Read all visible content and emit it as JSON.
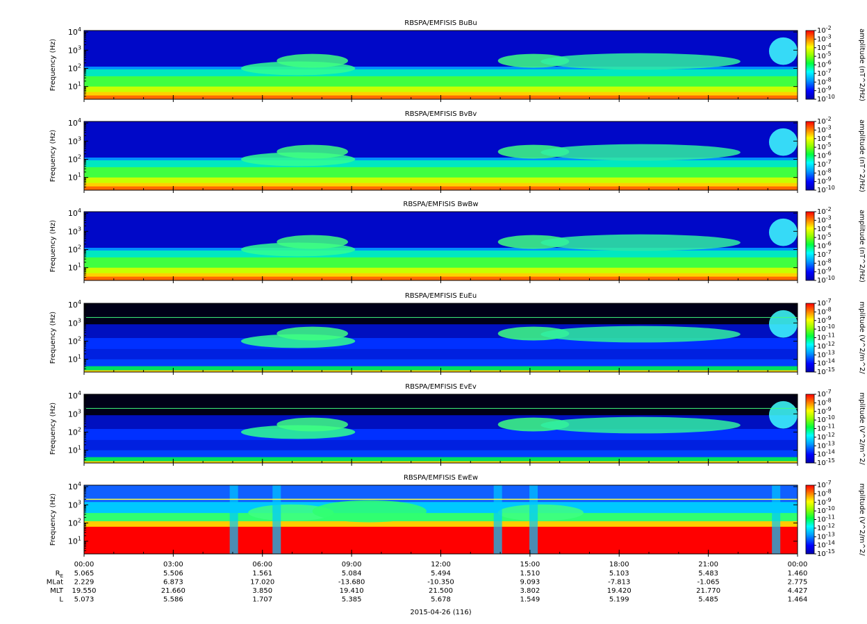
{
  "chart_data": [
    {
      "type": "heatmap",
      "title": "RBSPA/EMFISIS  BuBu",
      "ylabel": "Frequency (Hz)",
      "yscale": "log",
      "ylim": [
        2,
        12000
      ],
      "yticks": [
        {
          "base": "10",
          "exp": "1"
        },
        {
          "base": "10",
          "exp": "2"
        },
        {
          "base": "10",
          "exp": "3"
        },
        {
          "base": "10",
          "exp": "4"
        }
      ],
      "colorbar": {
        "label": "amplitude (nT^2/Hz)",
        "ticks": [
          {
            "base": "10",
            "exp": "-2"
          },
          {
            "base": "10",
            "exp": "-3"
          },
          {
            "base": "10",
            "exp": "-4"
          },
          {
            "base": "10",
            "exp": "-5"
          },
          {
            "base": "10",
            "exp": "-6"
          },
          {
            "base": "10",
            "exp": "-7"
          },
          {
            "base": "10",
            "exp": "-8"
          },
          {
            "base": "10",
            "exp": "-9"
          },
          {
            "base": "10",
            "exp": "-10"
          }
        ]
      },
      "kind": "B"
    },
    {
      "type": "heatmap",
      "title": "RBSPA/EMFISIS  BvBv",
      "ylabel": "Frequency (Hz)",
      "yscale": "log",
      "ylim": [
        2,
        12000
      ],
      "yticks": [
        {
          "base": "10",
          "exp": "1"
        },
        {
          "base": "10",
          "exp": "2"
        },
        {
          "base": "10",
          "exp": "3"
        },
        {
          "base": "10",
          "exp": "4"
        }
      ],
      "colorbar": {
        "label": "amplitude (nT^2/Hz)",
        "ticks": [
          {
            "base": "10",
            "exp": "-2"
          },
          {
            "base": "10",
            "exp": "-3"
          },
          {
            "base": "10",
            "exp": "-4"
          },
          {
            "base": "10",
            "exp": "-5"
          },
          {
            "base": "10",
            "exp": "-6"
          },
          {
            "base": "10",
            "exp": "-7"
          },
          {
            "base": "10",
            "exp": "-8"
          },
          {
            "base": "10",
            "exp": "-9"
          },
          {
            "base": "10",
            "exp": "-10"
          }
        ]
      },
      "kind": "B"
    },
    {
      "type": "heatmap",
      "title": "RBSPA/EMFISIS  BwBw",
      "ylabel": "Frequency (Hz)",
      "yscale": "log",
      "ylim": [
        2,
        12000
      ],
      "yticks": [
        {
          "base": "10",
          "exp": "1"
        },
        {
          "base": "10",
          "exp": "2"
        },
        {
          "base": "10",
          "exp": "3"
        },
        {
          "base": "10",
          "exp": "4"
        }
      ],
      "colorbar": {
        "label": "amplitude (nT^2/Hz)",
        "ticks": [
          {
            "base": "10",
            "exp": "-2"
          },
          {
            "base": "10",
            "exp": "-3"
          },
          {
            "base": "10",
            "exp": "-4"
          },
          {
            "base": "10",
            "exp": "-5"
          },
          {
            "base": "10",
            "exp": "-6"
          },
          {
            "base": "10",
            "exp": "-7"
          },
          {
            "base": "10",
            "exp": "-8"
          },
          {
            "base": "10",
            "exp": "-9"
          },
          {
            "base": "10",
            "exp": "-10"
          }
        ]
      },
      "kind": "B"
    },
    {
      "type": "heatmap",
      "title": "RBSPA/EMFISIS  EuEu",
      "ylabel": "Frequency (Hz)",
      "yscale": "log",
      "ylim": [
        2,
        12000
      ],
      "yticks": [
        {
          "base": "10",
          "exp": "1"
        },
        {
          "base": "10",
          "exp": "2"
        },
        {
          "base": "10",
          "exp": "3"
        },
        {
          "base": "10",
          "exp": "4"
        }
      ],
      "colorbar": {
        "label": "mplitude (V^2/m^2/",
        "ticks": [
          {
            "base": "10",
            "exp": "-7"
          },
          {
            "base": "10",
            "exp": "-8"
          },
          {
            "base": "10",
            "exp": "-9"
          },
          {
            "base": "10",
            "exp": "-10"
          },
          {
            "base": "10",
            "exp": "-11"
          },
          {
            "base": "10",
            "exp": "-12"
          },
          {
            "base": "10",
            "exp": "-13"
          },
          {
            "base": "10",
            "exp": "-14"
          },
          {
            "base": "10",
            "exp": "-15"
          }
        ]
      },
      "kind": "E"
    },
    {
      "type": "heatmap",
      "title": "RBSPA/EMFISIS  EvEv",
      "ylabel": "Frequency (Hz)",
      "yscale": "log",
      "ylim": [
        2,
        12000
      ],
      "yticks": [
        {
          "base": "10",
          "exp": "1"
        },
        {
          "base": "10",
          "exp": "2"
        },
        {
          "base": "10",
          "exp": "3"
        },
        {
          "base": "10",
          "exp": "4"
        }
      ],
      "colorbar": {
        "label": "mplitude (V^2/m^2/",
        "ticks": [
          {
            "base": "10",
            "exp": "-7"
          },
          {
            "base": "10",
            "exp": "-8"
          },
          {
            "base": "10",
            "exp": "-9"
          },
          {
            "base": "10",
            "exp": "-10"
          },
          {
            "base": "10",
            "exp": "-11"
          },
          {
            "base": "10",
            "exp": "-12"
          },
          {
            "base": "10",
            "exp": "-13"
          },
          {
            "base": "10",
            "exp": "-14"
          },
          {
            "base": "10",
            "exp": "-15"
          }
        ]
      },
      "kind": "E"
    },
    {
      "type": "heatmap",
      "title": "RBSPA/EMFISIS  EwEw",
      "ylabel": "Frequency (Hz)",
      "yscale": "log",
      "ylim": [
        2,
        12000
      ],
      "yticks": [
        {
          "base": "10",
          "exp": "1"
        },
        {
          "base": "10",
          "exp": "2"
        },
        {
          "base": "10",
          "exp": "3"
        },
        {
          "base": "10",
          "exp": "4"
        }
      ],
      "colorbar": {
        "label": "mplitude (V^2/m^2/",
        "ticks": [
          {
            "base": "10",
            "exp": "-7"
          },
          {
            "base": "10",
            "exp": "-8"
          },
          {
            "base": "10",
            "exp": "-9"
          },
          {
            "base": "10",
            "exp": "-10"
          },
          {
            "base": "10",
            "exp": "-11"
          },
          {
            "base": "10",
            "exp": "-12"
          },
          {
            "base": "10",
            "exp": "-13"
          },
          {
            "base": "10",
            "exp": "-14"
          },
          {
            "base": "10",
            "exp": "-15"
          }
        ]
      },
      "kind": "Ew"
    }
  ],
  "xaxis": {
    "ticks": [
      "00:00",
      "03:00",
      "06:00",
      "09:00",
      "12:00",
      "15:00",
      "18:00",
      "21:00",
      "00:00"
    ],
    "date_label": "2015-04-26 (116)"
  },
  "ephemeris": {
    "rows": [
      {
        "label": "R",
        "label_sub": "E",
        "values": [
          "5.065",
          "5.506",
          "1.561",
          "5.084",
          "5.494",
          "1.510",
          "5.103",
          "5.483",
          "1.460"
        ]
      },
      {
        "label": "MLat",
        "label_sub": "",
        "values": [
          "2.229",
          "6.873",
          "17.020",
          "-13.680",
          "-10.350",
          "9.093",
          "-7.813",
          "-1.065",
          "2.775"
        ]
      },
      {
        "label": "MLT",
        "label_sub": "",
        "values": [
          "19.550",
          "21.660",
          "3.850",
          "19.410",
          "21.500",
          "3.802",
          "19.420",
          "21.770",
          "4.427"
        ]
      },
      {
        "label": "L",
        "label_sub": "",
        "values": [
          "5.073",
          "5.586",
          "1.707",
          "5.385",
          "5.678",
          "1.549",
          "5.199",
          "5.485",
          "1.464"
        ]
      }
    ]
  }
}
